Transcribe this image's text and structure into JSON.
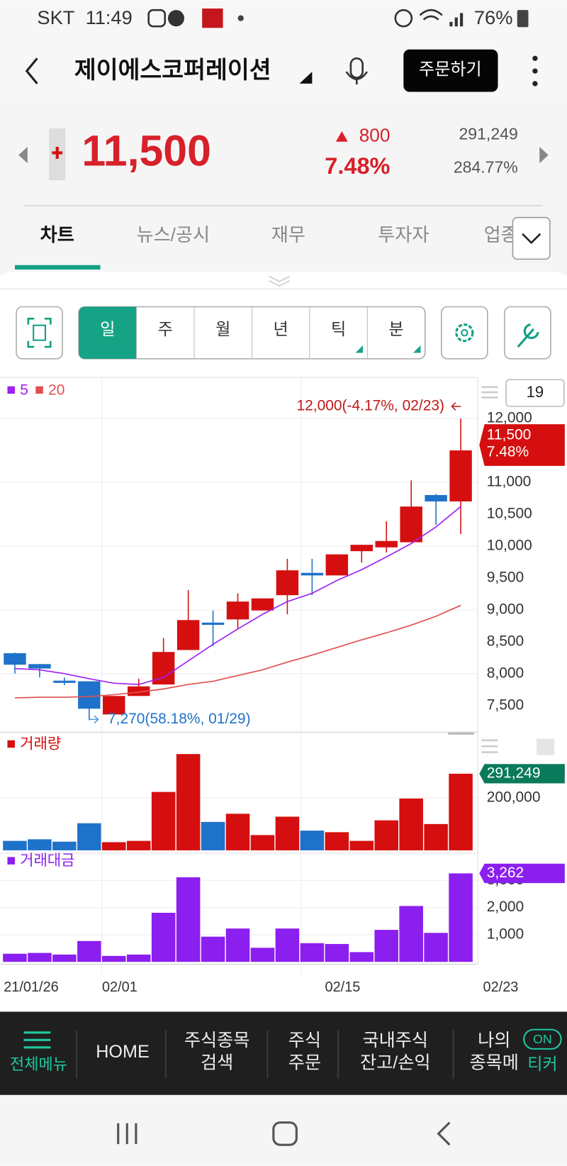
{
  "status_bar": {
    "carrier": "SKT",
    "time": "11:49",
    "battery": "76%"
  },
  "header": {
    "title": "제이에스코퍼레이션",
    "order_button": "주문하기"
  },
  "quote": {
    "price": "11,500",
    "change": "800",
    "change_pct": "7.48%",
    "volume": "291,249",
    "volume_ratio": "284.77%"
  },
  "tabs": [
    "차트",
    "뉴스/공시",
    "재무",
    "투자자",
    "업종"
  ],
  "periods": [
    "일",
    "주",
    "월",
    "년",
    "틱",
    "분"
  ],
  "chart_data": [
    {
      "type": "candlestick",
      "categories": [
        "21/01/26",
        null,
        null,
        null,
        "02/01",
        null,
        null,
        null,
        null,
        null,
        null,
        null,
        null,
        "02/15",
        null,
        null,
        null,
        null,
        "02/23"
      ],
      "open": [
        8320,
        8150,
        7890,
        7880,
        7360,
        7650,
        7830,
        8370,
        8800,
        8850,
        8990,
        9230,
        9580,
        9540,
        9920,
        9980,
        10060,
        10800,
        10700
      ],
      "high": [
        8330,
        8150,
        7940,
        7880,
        7650,
        7920,
        8560,
        9310,
        8990,
        9260,
        9180,
        9800,
        9800,
        9870,
        10020,
        10390,
        11030,
        10820,
        12000
      ],
      "low": [
        8000,
        7940,
        7820,
        7270,
        7360,
        7650,
        7830,
        8370,
        8430,
        8700,
        8990,
        8930,
        9230,
        9540,
        9740,
        9900,
        10060,
        10330,
        10190
      ],
      "close": [
        8140,
        8080,
        7870,
        7450,
        7650,
        7800,
        8340,
        8840,
        8780,
        9130,
        9180,
        9620,
        9540,
        9870,
        10020,
        10080,
        10620,
        10700,
        11500
      ],
      "up_color": "#d50f0f",
      "down_color": "#1f72c9",
      "series": [
        {
          "name": "5",
          "color": "#a020f0",
          "values": [
            8080,
            8060,
            8000,
            7920,
            7850,
            7830,
            7940,
            8200,
            8460,
            8700,
            8930,
            9130,
            9260,
            9460,
            9630,
            9830,
            10040,
            10300,
            10620
          ]
        },
        {
          "name": "20",
          "color": "#e05050",
          "values": [
            7620,
            7630,
            7630,
            7640,
            7670,
            7710,
            7760,
            7830,
            7880,
            7970,
            8060,
            8180,
            8290,
            8410,
            8530,
            8640,
            8760,
            8900,
            9070
          ]
        }
      ],
      "ylim": [
        7130,
        12610
      ],
      "yticks": [
        {
          "value": 7500,
          "label": "7,500"
        },
        {
          "value": 8000,
          "label": "8,000"
        },
        {
          "value": 8500,
          "label": "8,500"
        },
        {
          "value": 9000,
          "label": "9,000"
        },
        {
          "value": 9500,
          "label": "9,500"
        },
        {
          "value": 10000,
          "label": "10,000"
        },
        {
          "value": 10500,
          "label": "10,500"
        },
        {
          "value": 11000,
          "label": "11,000"
        },
        {
          "value": 11500,
          "label": "11,500"
        },
        {
          "value": 12000,
          "label": "12,000"
        }
      ],
      "grid": true,
      "count": "19",
      "annotations": [
        "12,000(-4.17%, 02/23)",
        "7,270(58.18%, 01/29)"
      ],
      "price_tag": [
        "11,500",
        "7.48%"
      ]
    },
    {
      "type": "bar",
      "title": "거래량",
      "color": "#d50f0f",
      "values": [
        36000,
        42000,
        33000,
        103000,
        31000,
        36000,
        222000,
        366000,
        108000,
        139000,
        58000,
        128000,
        75000,
        69000,
        36000,
        114000,
        197000,
        100000,
        291249
      ],
      "colors": [
        "#1f72c9",
        "#1f72c9",
        "#1f72c9",
        "#1f72c9",
        "#d50f0f",
        "#d50f0f",
        "#d50f0f",
        "#d50f0f",
        "#1f72c9",
        "#d50f0f",
        "#d50f0f",
        "#d50f0f",
        "#1f72c9",
        "#d50f0f",
        "#d50f0f",
        "#d50f0f",
        "#d50f0f",
        "#d50f0f",
        "#d50f0f"
      ],
      "value_labels": [
        null,
        null,
        null,
        null,
        null,
        null,
        null,
        null,
        null,
        null,
        null,
        null,
        null,
        null,
        null,
        null,
        null,
        null,
        "291,249"
      ],
      "tag_color": "#0a7a5a",
      "ylim": [
        0,
        424000
      ],
      "yticks": [
        {
          "value": 200000,
          "label": "200,000"
        }
      ],
      "grid": true
    },
    {
      "type": "bar",
      "title": "거래대금",
      "color": "#8b1ff0",
      "values": [
        300,
        330,
        270,
        770,
        220,
        270,
        1810,
        3120,
        930,
        1230,
        520,
        1230,
        690,
        660,
        360,
        1180,
        2060,
        1070,
        3262
      ],
      "value_labels": [
        null,
        null,
        null,
        null,
        null,
        null,
        null,
        null,
        null,
        null,
        null,
        null,
        null,
        null,
        null,
        null,
        null,
        null,
        "3,262"
      ],
      "tag_color": "#8b1ff0",
      "ylim": [
        0,
        3920
      ],
      "yticks": [
        {
          "value": 1000,
          "label": "1,000"
        },
        {
          "value": 2000,
          "label": "2,000"
        },
        {
          "value": 3000,
          "label": "3,000"
        }
      ],
      "grid": true
    }
  ],
  "bottom_nav": {
    "items": [
      [
        "전체메뉴"
      ],
      [
        "HOME"
      ],
      [
        "주식종목",
        "검색"
      ],
      [
        "주식",
        "주문"
      ],
      [
        "국내주식",
        "잔고/손익"
      ],
      [
        "나의",
        "종목메"
      ]
    ],
    "toggle": "ON",
    "ticker": "티커"
  }
}
